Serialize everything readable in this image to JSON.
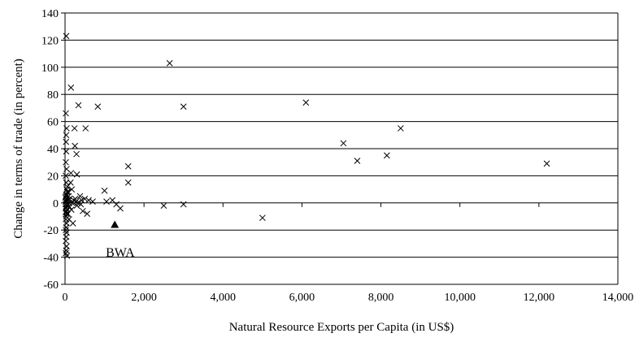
{
  "chart_data": {
    "type": "scatter",
    "title": "",
    "xlabel": "Natural Resource Exports per Capita (in US$)",
    "ylabel": "Change in terms of trade (in percent)",
    "xlim": [
      0,
      14000
    ],
    "ylim": [
      -60,
      140
    ],
    "x_ticks": [
      0,
      2000,
      4000,
      6000,
      8000,
      10000,
      12000,
      14000
    ],
    "x_tick_labels": [
      "0",
      "2,000",
      "4,000",
      "6,000",
      "8,000",
      "10,000",
      "12,000",
      "14,000"
    ],
    "y_ticks": [
      -60,
      -40,
      -20,
      0,
      20,
      40,
      60,
      80,
      100,
      120,
      140
    ],
    "y_tick_labels": [
      "-60",
      "-40",
      "-20",
      "0",
      "20",
      "40",
      "60",
      "80",
      "100",
      "120",
      "140"
    ],
    "grid": "horizontal",
    "legend": "none",
    "marker": "x",
    "series": [
      {
        "marker": "x",
        "points": [
          [
            30,
            123
          ],
          [
            20,
            66
          ],
          [
            40,
            55
          ],
          [
            30,
            50
          ],
          [
            25,
            45
          ],
          [
            30,
            38
          ],
          [
            20,
            30
          ],
          [
            40,
            25
          ],
          [
            20,
            20
          ],
          [
            30,
            15
          ],
          [
            60,
            12
          ],
          [
            40,
            10
          ],
          [
            50,
            8
          ],
          [
            30,
            6
          ],
          [
            20,
            5
          ],
          [
            10,
            4
          ],
          [
            40,
            3
          ],
          [
            30,
            2
          ],
          [
            20,
            1
          ],
          [
            50,
            0
          ],
          [
            20,
            -1
          ],
          [
            40,
            -2
          ],
          [
            30,
            -3
          ],
          [
            20,
            -4
          ],
          [
            50,
            -5
          ],
          [
            30,
            -6
          ],
          [
            20,
            -7
          ],
          [
            40,
            -8
          ],
          [
            30,
            -10
          ],
          [
            20,
            -12
          ],
          [
            40,
            -15
          ],
          [
            30,
            -18
          ],
          [
            20,
            -20
          ],
          [
            40,
            -22
          ],
          [
            30,
            -25
          ],
          [
            20,
            -28
          ],
          [
            40,
            -32
          ],
          [
            30,
            -35
          ],
          [
            20,
            -37
          ],
          [
            50,
            -39
          ],
          [
            80,
            2
          ],
          [
            100,
            0
          ],
          [
            120,
            -3
          ],
          [
            90,
            5
          ],
          [
            110,
            3
          ],
          [
            70,
            -8
          ],
          [
            100,
            -12
          ],
          [
            80,
            8
          ],
          [
            150,
            85
          ],
          [
            150,
            22
          ],
          [
            160,
            -5
          ],
          [
            180,
            0
          ],
          [
            200,
            -15
          ],
          [
            220,
            2
          ],
          [
            260,
            3
          ],
          [
            280,
            1
          ],
          [
            300,
            -2
          ],
          [
            320,
            0
          ],
          [
            140,
            15
          ],
          [
            170,
            10
          ],
          [
            240,
            55
          ],
          [
            250,
            42
          ],
          [
            290,
            36
          ],
          [
            300,
            21
          ],
          [
            340,
            72
          ],
          [
            380,
            5
          ],
          [
            400,
            -1
          ],
          [
            420,
            2
          ],
          [
            450,
            -6
          ],
          [
            500,
            3
          ],
          [
            520,
            55
          ],
          [
            560,
            -8
          ],
          [
            600,
            2
          ],
          [
            700,
            1
          ],
          [
            830,
            71
          ],
          [
            1000,
            9
          ],
          [
            1050,
            1
          ],
          [
            1200,
            2
          ],
          [
            1300,
            -1
          ],
          [
            1400,
            -4
          ],
          [
            1600,
            27
          ],
          [
            1600,
            15
          ],
          [
            2500,
            -2
          ],
          [
            2650,
            103
          ],
          [
            3000,
            71
          ],
          [
            3000,
            -1
          ],
          [
            5000,
            -11
          ],
          [
            6100,
            74
          ],
          [
            7050,
            44
          ],
          [
            7400,
            31
          ],
          [
            8150,
            35
          ],
          [
            8500,
            55
          ],
          [
            12200,
            29
          ]
        ]
      },
      {
        "name": "BWA",
        "marker": "triangle",
        "points": [
          [
            1260,
            -16
          ]
        ]
      }
    ],
    "annotations": [
      {
        "text": "BWA",
        "x": 620,
        "y": -36
      }
    ]
  }
}
